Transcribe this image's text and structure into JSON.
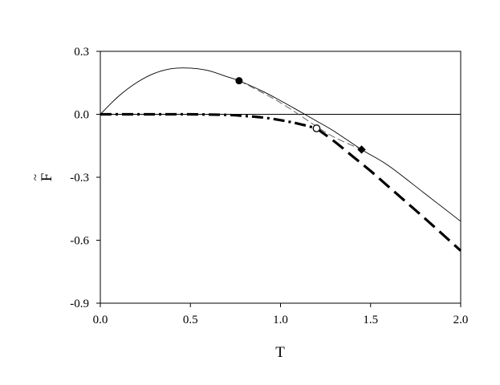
{
  "chart_data": {
    "type": "line",
    "xlabel": "T",
    "ylabel": "F",
    "ylabel_accent": "~",
    "xlim": [
      0.0,
      2.0
    ],
    "ylim": [
      -0.9,
      0.3
    ],
    "xticks": [
      "0.0",
      "0.5",
      "1.0",
      "1.5",
      "2.0"
    ],
    "yticks": [
      "0.3",
      "0.0",
      "-0.3",
      "-0.6",
      "-0.9"
    ],
    "xtick_values": [
      0.0,
      0.5,
      1.0,
      1.5,
      2.0
    ],
    "ytick_values": [
      0.3,
      0.0,
      -0.3,
      -0.6,
      -0.9
    ],
    "grid": false,
    "series": [
      {
        "style": "thin-solid",
        "color": "#000000",
        "x": [
          0.0,
          0.1,
          0.2,
          0.3,
          0.4,
          0.5,
          0.6,
          0.7,
          0.77,
          0.9,
          1.0,
          1.1,
          1.2,
          1.3,
          1.45,
          1.6,
          1.8,
          2.0
        ],
        "y": [
          0.0,
          0.085,
          0.15,
          0.195,
          0.218,
          0.22,
          0.208,
          0.18,
          0.16,
          0.11,
          0.065,
          0.017,
          -0.032,
          -0.082,
          -0.168,
          -0.245,
          -0.377,
          -0.51
        ]
      },
      {
        "style": "thin-dashed",
        "color": "#555555",
        "x": [
          0.77,
          0.9,
          1.0,
          1.1,
          1.2,
          1.3,
          1.45
        ],
        "y": [
          0.16,
          0.103,
          0.055,
          0.0,
          -0.058,
          -0.11,
          -0.168
        ]
      },
      {
        "style": "thick-dash-dot",
        "color": "#000000",
        "x": [
          0.0,
          0.3,
          0.5,
          0.7,
          0.8,
          0.9,
          1.0,
          1.1,
          1.2
        ],
        "y": [
          0.0,
          0.0,
          0.0,
          -0.003,
          -0.008,
          -0.015,
          -0.028,
          -0.045,
          -0.067
        ]
      },
      {
        "style": "thick-dashed",
        "color": "#000000",
        "x": [
          1.2,
          1.3,
          1.4,
          1.5,
          1.6,
          1.7,
          1.8,
          1.9,
          2.0
        ],
        "y": [
          -0.067,
          -0.13,
          -0.2,
          -0.27,
          -0.345,
          -0.42,
          -0.495,
          -0.572,
          -0.65
        ]
      }
    ],
    "markers": [
      {
        "shape": "filled-circle",
        "x": 0.77,
        "y": 0.16
      },
      {
        "shape": "open-circle",
        "x": 1.2,
        "y": -0.067
      },
      {
        "shape": "filled-diamond",
        "x": 1.45,
        "y": -0.168
      }
    ],
    "reference_lines": [
      {
        "orientation": "horizontal",
        "y": 0.0
      }
    ]
  }
}
